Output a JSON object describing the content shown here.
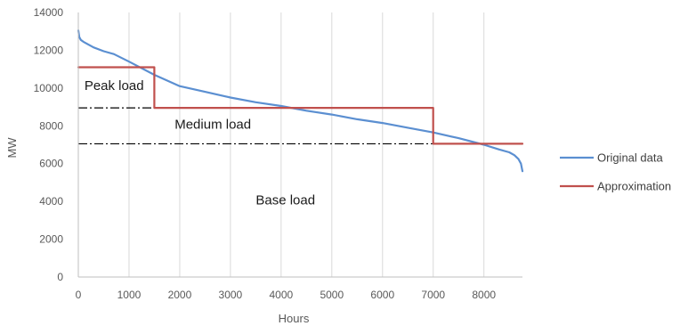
{
  "chart_data": {
    "type": "line",
    "xlabel": "Hours",
    "ylabel": "MW",
    "xlim": [
      0,
      8760
    ],
    "ylim": [
      0,
      14000
    ],
    "x_ticks": [
      0,
      1000,
      2000,
      3000,
      4000,
      5000,
      6000,
      7000,
      8000
    ],
    "y_ticks": [
      0,
      2000,
      4000,
      6000,
      8000,
      10000,
      12000,
      14000
    ],
    "grid": "vertical",
    "legend_position": "right",
    "series": [
      {
        "name": "Original data",
        "color": "#5b8fd1",
        "x": [
          0,
          20,
          50,
          100,
          200,
          300,
          500,
          700,
          1000,
          1500,
          2000,
          2500,
          3000,
          3500,
          4000,
          4500,
          5000,
          5500,
          6000,
          6500,
          7000,
          7500,
          8000,
          8300,
          8500,
          8600,
          8680,
          8730,
          8760
        ],
        "y": [
          13050,
          12700,
          12550,
          12450,
          12300,
          12150,
          11950,
          11800,
          11400,
          10700,
          10100,
          9800,
          9500,
          9250,
          9050,
          8800,
          8600,
          8350,
          8150,
          7900,
          7650,
          7350,
          7000,
          6750,
          6600,
          6450,
          6250,
          6000,
          5600
        ]
      },
      {
        "name": "Approximation",
        "color": "#c0504d",
        "x": [
          0,
          1500,
          1500,
          7000,
          7000,
          8760
        ],
        "y": [
          11100,
          11100,
          8950,
          8950,
          7050,
          7050
        ]
      }
    ],
    "reference_lines": [
      {
        "style": "dash-dot",
        "color": "#000000",
        "y": 8950,
        "x_start": 0,
        "x_end": 1500
      },
      {
        "style": "dash-dot",
        "color": "#000000",
        "y": 7050,
        "x_start": 0,
        "x_end": 7000
      }
    ],
    "annotations": [
      {
        "text": "Peak load",
        "x": 120,
        "y": 9900
      },
      {
        "text": "Medium load",
        "x": 1900,
        "y": 7850
      },
      {
        "text": "Base load",
        "x": 3500,
        "y": 3850
      }
    ]
  }
}
